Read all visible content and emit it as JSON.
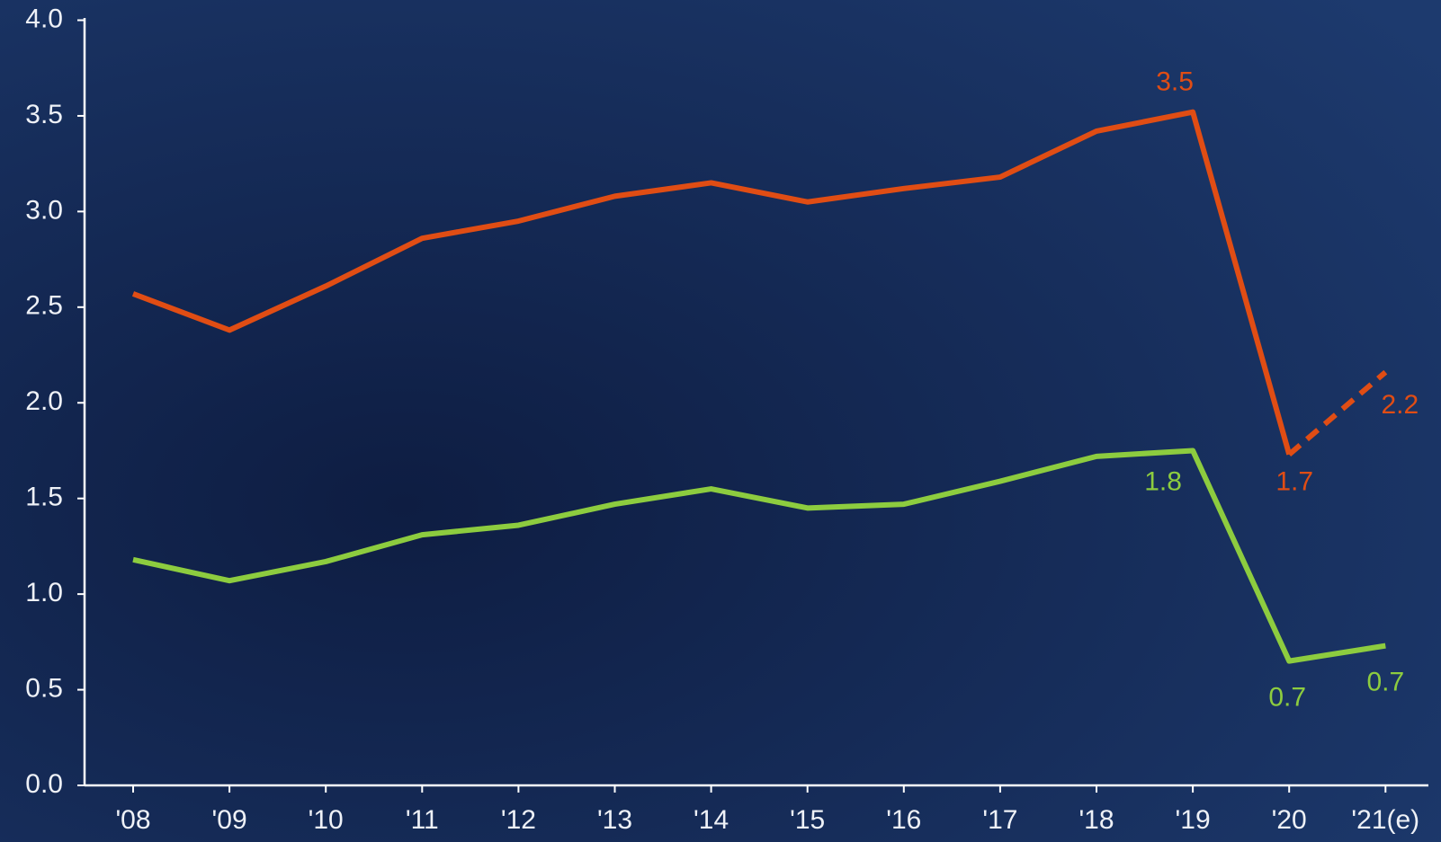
{
  "chart_data": {
    "type": "line",
    "categories": [
      "'08",
      "'09",
      "'10",
      "'11",
      "'12",
      "'13",
      "'14",
      "'15",
      "'16",
      "'17",
      "'18",
      "'19",
      "'20",
      "'21(e)"
    ],
    "series": [
      {
        "color": "#e04d14",
        "values": [
          2.57,
          2.38,
          2.61,
          2.86,
          2.95,
          3.08,
          3.15,
          3.05,
          3.12,
          3.18,
          3.42,
          3.52,
          1.73,
          2.16
        ],
        "value_labels": [
          null,
          null,
          null,
          null,
          null,
          null,
          null,
          null,
          null,
          null,
          null,
          "3.5",
          "1.7",
          "2.2"
        ],
        "dashed_segments": [
          12
        ]
      },
      {
        "color": "#8dcc3f",
        "values": [
          1.18,
          1.07,
          1.17,
          1.31,
          1.36,
          1.47,
          1.55,
          1.45,
          1.47,
          1.59,
          1.72,
          1.75,
          0.65,
          0.73
        ],
        "value_labels": [
          null,
          null,
          null,
          null,
          null,
          null,
          null,
          null,
          null,
          null,
          null,
          "1.8",
          "0.7",
          "0.7"
        ]
      }
    ],
    "ylim": [
      0,
      4
    ],
    "yticks": [
      {
        "value": 0,
        "label": "0.0"
      },
      {
        "value": 0.5,
        "label": "0.5"
      },
      {
        "value": 1,
        "label": "1.0"
      },
      {
        "value": 1.5,
        "label": "1.5"
      },
      {
        "value": 2,
        "label": "2.0"
      },
      {
        "value": 2.5,
        "label": "2.5"
      },
      {
        "value": 3,
        "label": "3.0"
      },
      {
        "value": 3.5,
        "label": "3.5"
      },
      {
        "value": 4,
        "label": "4.0"
      }
    ]
  }
}
